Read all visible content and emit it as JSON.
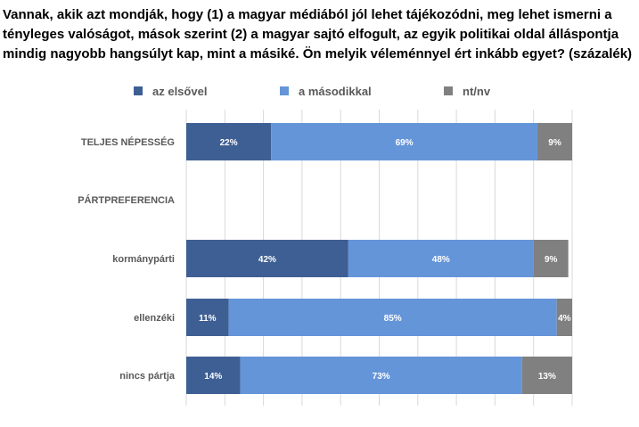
{
  "title_lines": [
    "Vannak, akik azt mondják, hogy (1) a magyar médiából jól lehet tájékozódni, meg lehet ismerni a",
    "tényleges valóságot, mások szerint (2) a magyar sajtó elfogult, az egyik politikai oldal álláspontja",
    "mindig nagyobb hangsúlyt kap, mint a másiké. Ön melyik véleménnyel ért inkább egyet? (százalék)"
  ],
  "chart_data": {
    "type": "bar",
    "orientation": "horizontal",
    "stacked": true,
    "title": "Vannak, akik azt mondják, hogy (1) a magyar médiából jól lehet tájékozódni, meg lehet ismerni a tényleges valóságot, mások szerint (2) a magyar sajtó elfogult, az egyik politikai oldal álláspontja mindig nagyobb hangsúlyt kap, mint a másiké. Ön melyik véleménnyel ért inkább egyet? (százalék)",
    "categories": [
      "TELJES NÉPESSÉG",
      "PÁRTPREFERENCIA",
      "kormánypárti",
      "ellenzéki",
      "nincs pártja"
    ],
    "category_styles": [
      "heading",
      "heading",
      "normal",
      "normal",
      "normal"
    ],
    "series": [
      {
        "name": "az elsővel",
        "color": "#3e5f94",
        "values": [
          22,
          null,
          42,
          11,
          14
        ],
        "labels": [
          "22%",
          "",
          "42%",
          "11%",
          "14%"
        ]
      },
      {
        "name": "a másodikkal",
        "color": "#6495d9",
        "values": [
          69,
          null,
          48,
          85,
          73
        ],
        "labels": [
          "69%",
          "",
          "48%",
          "85%",
          "73%"
        ]
      },
      {
        "name": "nt/nv",
        "color": "#808080",
        "values": [
          9,
          null,
          9,
          4,
          13
        ],
        "labels": [
          "9%",
          "",
          "9%",
          "4%",
          "13%"
        ]
      }
    ],
    "xlim": [
      0,
      100
    ],
    "grid": true,
    "legend_position": "top"
  }
}
